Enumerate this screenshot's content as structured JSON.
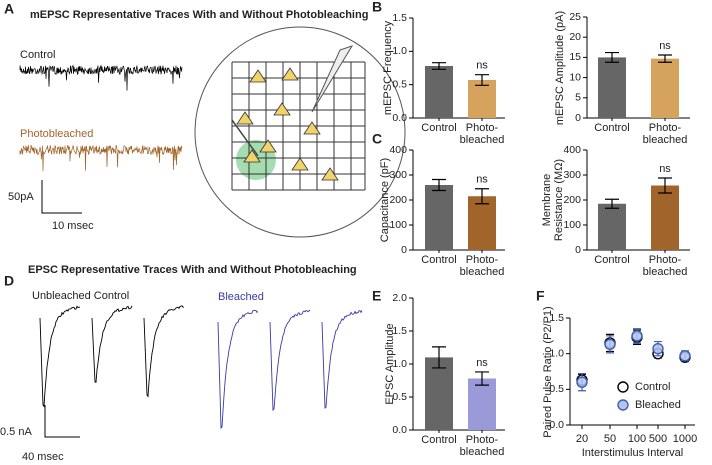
{
  "panels": {
    "A": {
      "letter": "A",
      "title": "mEPSC Representative Traces With and Without Photobleaching",
      "control_label": "Control",
      "bleached_label": "Photobleached",
      "scale_y": "50pA",
      "scale_x": "10 msec"
    },
    "B": {
      "letter": "B"
    },
    "C": {
      "letter": "C"
    },
    "D": {
      "letter": "D",
      "title": "EPSC Representative Traces With and Without Photobleaching",
      "control_label": "Unbleached Control",
      "bleached_label": "Bleached",
      "scale_y": "0.5 nA",
      "scale_x": "40 msec"
    },
    "E": {
      "letter": "E"
    },
    "F": {
      "letter": "F"
    }
  },
  "chart_data": [
    {
      "type": "bar",
      "ylabel": "mEPSC Frequency",
      "categories": [
        "Control",
        "Photo-bleached"
      ],
      "values": [
        0.78,
        0.57
      ],
      "errors": [
        0.05,
        0.08
      ],
      "colors": [
        "#666666",
        "#d6a35e"
      ],
      "ylim": [
        0,
        1.5
      ],
      "yticks": [
        {
          "value": 0,
          "label": "0.0"
        },
        {
          "value": 0.5,
          "label": "0.5"
        },
        {
          "value": 1.0,
          "label": "1.0"
        },
        {
          "value": 1.5,
          "label": "1.5"
        }
      ],
      "annotation": "ns"
    },
    {
      "type": "bar",
      "ylabel": "mEPSC Amplitude (pA)",
      "categories": [
        "Control",
        "Photo-bleached"
      ],
      "values": [
        15,
        14.7
      ],
      "errors": [
        1.2,
        0.9
      ],
      "colors": [
        "#666666",
        "#d6a35e"
      ],
      "ylim": [
        0,
        25
      ],
      "yticks": [
        0,
        5,
        10,
        15,
        20,
        25
      ],
      "annotation": "ns"
    },
    {
      "type": "bar",
      "ylabel": "Capacitance (pF)",
      "categories": [
        "Control",
        "Photo-bleached"
      ],
      "values": [
        260,
        215
      ],
      "errors": [
        22,
        30
      ],
      "colors": [
        "#666666",
        "#a1652b"
      ],
      "ylim": [
        0,
        400
      ],
      "yticks": [
        0,
        100,
        200,
        300,
        400
      ],
      "annotation": "ns"
    },
    {
      "type": "bar",
      "ylabel": "Membrane Resistance (MΩ)",
      "categories": [
        "Control",
        "Photo-bleached"
      ],
      "values": [
        185,
        258
      ],
      "errors": [
        18,
        30
      ],
      "colors": [
        "#666666",
        "#a1652b"
      ],
      "ylim": [
        0,
        400
      ],
      "yticks": [
        0,
        100,
        200,
        300,
        400
      ],
      "annotation": "ns"
    },
    {
      "type": "bar",
      "ylabel": "EPSC Amplitude",
      "categories": [
        "Control",
        "Photo-bleached"
      ],
      "values": [
        1.1,
        0.78
      ],
      "errors": [
        0.16,
        0.1
      ],
      "colors": [
        "#666666",
        "#9a9ad8"
      ],
      "ylim": [
        0,
        2.0
      ],
      "yticks": [
        {
          "value": 0,
          "label": "0.0"
        },
        {
          "value": 0.5,
          "label": "0.5"
        },
        {
          "value": 1.0,
          "label": "1.0"
        },
        {
          "value": 1.5,
          "label": "1.5"
        },
        {
          "value": 2.0,
          "label": "2.0"
        }
      ],
      "annotation": "ns"
    },
    {
      "type": "scatter",
      "xlabel": "Interstimulus Interval",
      "ylabel": "Paired Pulse Ratio (P2/P1)",
      "categories": [
        "20",
        "50",
        "100",
        "500",
        "1000"
      ],
      "series": [
        {
          "name": "Control",
          "color": "#000000",
          "fill": "#ffffff",
          "values": [
            0.63,
            1.15,
            1.23,
            1.0,
            0.95
          ],
          "errors": [
            0.08,
            0.12,
            0.1,
            0.06,
            0.06
          ]
        },
        {
          "name": "Bleached",
          "color": "#3f5fb0",
          "fill": "#b3c3ee",
          "values": [
            0.6,
            1.13,
            1.25,
            1.07,
            0.97
          ],
          "errors": [
            0.12,
            0.12,
            0.1,
            0.1,
            0.07
          ]
        }
      ],
      "ylim": [
        0,
        1.5
      ],
      "yticks": [
        {
          "value": 0,
          "label": "0.0"
        },
        {
          "value": 0.5,
          "label": "0.5"
        },
        {
          "value": 1.0,
          "label": "1.0"
        },
        {
          "value": 1.5,
          "label": "1.5"
        }
      ]
    }
  ]
}
